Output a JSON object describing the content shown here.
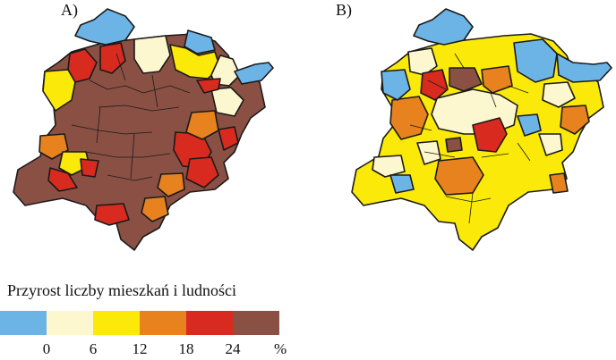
{
  "panels": [
    {
      "label": "A)"
    },
    {
      "label": "B)"
    }
  ],
  "legend": {
    "title": "Przyrost liczby mieszkań i ludności",
    "classes": [
      {
        "range": "< 0",
        "color": "#6db4e6"
      },
      {
        "range": "0–6",
        "color": "#fdf7cf"
      },
      {
        "range": "6–12",
        "color": "#fbe90a"
      },
      {
        "range": "12–18",
        "color": "#e8821e"
      },
      {
        "range": "18–24",
        "color": "#d92a1f"
      },
      {
        "range": "> 24",
        "color": "#8b5044"
      }
    ],
    "ticks": [
      "0",
      "6",
      "12",
      "18",
      "24"
    ],
    "unit": "%"
  }
}
